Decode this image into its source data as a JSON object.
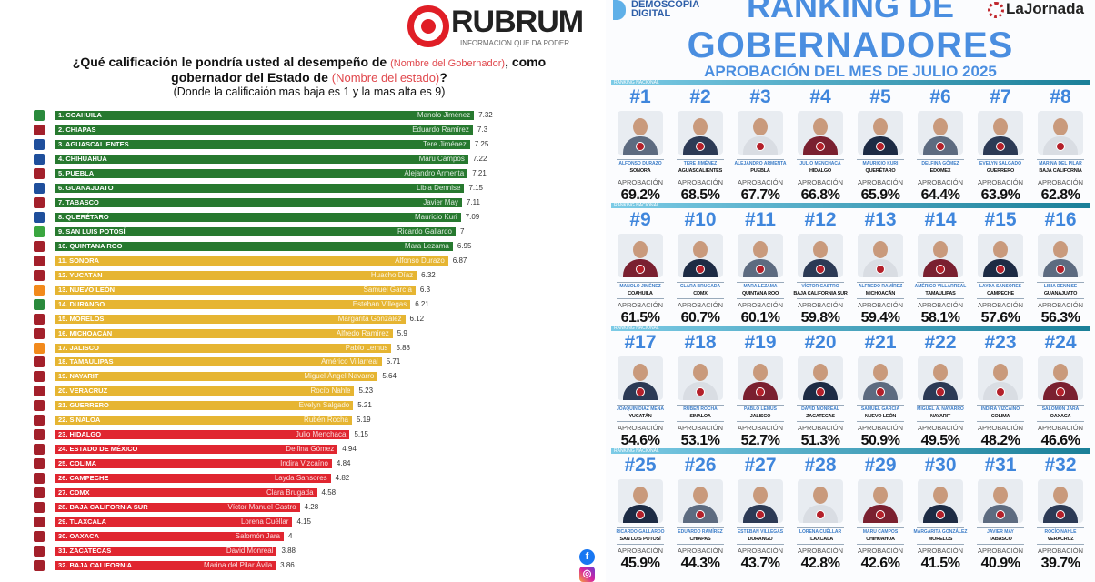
{
  "left": {
    "logo": {
      "text": "RUBRUM",
      "tagline": "INFORMACION QUE DA PODER"
    },
    "question": {
      "part1": "¿Qué calificación le pondría usted al desempeño de ",
      "ph_gobernador": "(Nombre del Gobernador)",
      "part2": ", como",
      "part3": "gobernador del Estado de ",
      "ph_estado": "(Nombre del estado)",
      "part4": "?",
      "note": "(Donde la calificaión mas baja es 1 y la mas alta es 9)"
    },
    "social": {
      "facebook": "facebook-icon",
      "instagram": "instagram-icon"
    }
  },
  "chart_data": {
    "type": "bar",
    "orientation": "horizontal",
    "xlim": [
      0,
      9
    ],
    "colors": {
      "green": "#27792f",
      "yellow": "#e6b532",
      "red": "#e02630"
    },
    "categories": [
      "1. COAHUILA",
      "2. CHIAPAS",
      "3. AGUASCALIENTES",
      "4. CHIHUAHUA",
      "5. PUEBLA",
      "6. GUANAJUATO",
      "7. TABASCO",
      "8. QUERÉTARO",
      "9. SAN LUIS POTOSÍ",
      "10. QUINTANA ROO",
      "11. SONORA",
      "12. YUCATÁN",
      "13. NUEVO LEÓN",
      "14. DURANGO",
      "15. MORELOS",
      "16. MICHOACÁN",
      "17. JALISCO",
      "18. TAMAULIPAS",
      "19. NAYARIT",
      "20. VERACRUZ",
      "21. GUERRERO",
      "22. SINALOA",
      "23. HIDALGO",
      "24. ESTADO DE MÉXICO",
      "25. COLIMA",
      "26. CAMPECHE",
      "27. CDMX",
      "28. BAJA CALIFORNIA SUR",
      "29. TLAXCALA",
      "30. OAXACA",
      "31. ZACATECAS",
      "32. BAJA CALIFORNIA"
    ],
    "governors": [
      "Manolo Jiménez",
      "Eduardo Ramírez",
      "Tere Jiménez",
      "Maru Campos",
      "Alejandro Armenta",
      "Libia Dennise",
      "Javier May",
      "Mauricio Kuri",
      "Ricardo Gallardo",
      "Mara Lezama",
      "Alfonso Durazo",
      "Huacho Díaz",
      "Samuel García",
      "Esteban Villegas",
      "Margarita González",
      "Alfredo Ramírez",
      "Pablo Lemus",
      "Américo Villarreal",
      "Miguel Ángel Navarro",
      "Rocío Nahle",
      "Evelyn Salgado",
      "Rubén Rocha",
      "Julio Menchaca",
      "Delfina Gómez",
      "Indira Vizcaíno",
      "Layda Sansores",
      "Clara Brugada",
      "Víctor Manuel Castro",
      "Lorena Cuéllar",
      "Salomón Jara",
      "David Monreal",
      "Marina del Pilar Ávila"
    ],
    "values": [
      7.32,
      7.3,
      7.25,
      7.22,
      7.21,
      7.15,
      7.11,
      7.09,
      7,
      6.95,
      6.87,
      6.32,
      6.3,
      6.21,
      6.12,
      5.9,
      5.88,
      5.71,
      5.64,
      5.23,
      5.21,
      5.19,
      5.15,
      4.94,
      4.84,
      4.82,
      4.58,
      4.28,
      4.15,
      4,
      3.88,
      3.86
    ],
    "value_labels": [
      "7.32",
      "7.3",
      "7.25",
      "7.22",
      "7.21",
      "7.15",
      "7.11",
      "7.09",
      "7",
      "6.95",
      "6.87",
      "6.32",
      "6.3",
      "6.21",
      "6.12",
      "5.9",
      "5.88",
      "5.71",
      "5.64",
      "5.23",
      "5.21",
      "5.19",
      "5.15",
      "4.94",
      "4.84",
      "4.82",
      "4.58",
      "4.28",
      "4.15",
      "4",
      "3.88",
      "3.86"
    ],
    "bar_color_group": [
      "green",
      "green",
      "green",
      "green",
      "green",
      "green",
      "green",
      "green",
      "green",
      "green",
      "yellow",
      "yellow",
      "yellow",
      "yellow",
      "yellow",
      "yellow",
      "yellow",
      "yellow",
      "yellow",
      "yellow",
      "yellow",
      "yellow",
      "red",
      "red",
      "red",
      "red",
      "red",
      "red",
      "red",
      "red",
      "red",
      "red"
    ],
    "party_colors": [
      "#2a8a3c",
      "#a3202b",
      "#1f4f9c",
      "#1f4f9c",
      "#a3202b",
      "#1f4f9c",
      "#a3202b",
      "#1f4f9c",
      "#3aa640",
      "#a3202b",
      "#a3202b",
      "#a3202b",
      "#f28a1c",
      "#2a8a3c",
      "#a3202b",
      "#a3202b",
      "#f28a1c",
      "#a3202b",
      "#a3202b",
      "#a3202b",
      "#a3202b",
      "#a3202b",
      "#a3202b",
      "#a3202b",
      "#a3202b",
      "#a3202b",
      "#a3202b",
      "#a3202b",
      "#a3202b",
      "#a3202b",
      "#a3202b",
      "#a3202b"
    ]
  },
  "right": {
    "brand_left": [
      "DEMOSCOPIA",
      "DIGITAL"
    ],
    "brand_right": "LaJornada",
    "title1": "RANKING DE",
    "title2": "GOBERNADORES",
    "subtitle": "APROBACIÓN DEL MES DE JULIO 2025",
    "group_label": "RANKING NACIONAL",
    "approval_label": "APROBACIÓN",
    "ranking": [
      {
        "rank": "#1",
        "name": "ALFONSO DURAZO",
        "state": "SONORA",
        "pct": "69.2%",
        "value": 69.2
      },
      {
        "rank": "#2",
        "name": "TERE JIMÉNEZ",
        "state": "AGUASCALIENTES",
        "pct": "68.5%",
        "value": 68.5
      },
      {
        "rank": "#3",
        "name": "ALEJANDRO ARMENTA",
        "state": "PUEBLA",
        "pct": "67.7%",
        "value": 67.7
      },
      {
        "rank": "#4",
        "name": "JULIO MENCHACA",
        "state": "HIDALGO",
        "pct": "66.8%",
        "value": 66.8
      },
      {
        "rank": "#5",
        "name": "MAURICIO KURI",
        "state": "QUERÉTARO",
        "pct": "65.9%",
        "value": 65.9
      },
      {
        "rank": "#6",
        "name": "DELFINA GÓMEZ",
        "state": "EDOMEX",
        "pct": "64.4%",
        "value": 64.4
      },
      {
        "rank": "#7",
        "name": "EVELYN SALGADO",
        "state": "GUERRERO",
        "pct": "63.9%",
        "value": 63.9
      },
      {
        "rank": "#8",
        "name": "MARINA DEL PILAR",
        "state": "BAJA CALIFORNIA",
        "pct": "62.8%",
        "value": 62.8
      },
      {
        "rank": "#9",
        "name": "MANOLO JIMÉNEZ",
        "state": "COAHUILA",
        "pct": "61.5%",
        "value": 61.5
      },
      {
        "rank": "#10",
        "name": "CLARA BRUGADA",
        "state": "CDMX",
        "pct": "60.7%",
        "value": 60.7
      },
      {
        "rank": "#11",
        "name": "MARA LEZAMA",
        "state": "QUINTANA ROO",
        "pct": "60.1%",
        "value": 60.1
      },
      {
        "rank": "#12",
        "name": "VÍCTOR CASTRO",
        "state": "BAJA CALIFORNIA SUR",
        "pct": "59.8%",
        "value": 59.8
      },
      {
        "rank": "#13",
        "name": "ALFREDO RAMÍREZ",
        "state": "MICHOACÁN",
        "pct": "59.4%",
        "value": 59.4
      },
      {
        "rank": "#14",
        "name": "AMÉRICO VILLARREAL",
        "state": "TAMAULIPAS",
        "pct": "58.1%",
        "value": 58.1
      },
      {
        "rank": "#15",
        "name": "LAYDA SANSORES",
        "state": "CAMPECHE",
        "pct": "57.6%",
        "value": 57.6
      },
      {
        "rank": "#16",
        "name": "LIBIA DENNISE",
        "state": "GUANAJUATO",
        "pct": "56.3%",
        "value": 56.3
      },
      {
        "rank": "#17",
        "name": "JOAQUÍN DÍAZ MENA",
        "state": "YUCATÁN",
        "pct": "54.6%",
        "value": 54.6
      },
      {
        "rank": "#18",
        "name": "RUBÉN ROCHA",
        "state": "SINALOA",
        "pct": "53.1%",
        "value": 53.1
      },
      {
        "rank": "#19",
        "name": "PABLO LEMUS",
        "state": "JALISCO",
        "pct": "52.7%",
        "value": 52.7
      },
      {
        "rank": "#20",
        "name": "DAVID MONREAL",
        "state": "ZACATECAS",
        "pct": "51.3%",
        "value": 51.3
      },
      {
        "rank": "#21",
        "name": "SAMUEL GARCÍA",
        "state": "NUEVO LEÓN",
        "pct": "50.9%",
        "value": 50.9
      },
      {
        "rank": "#22",
        "name": "MIGUEL Á. NAVARRO",
        "state": "NAYARIT",
        "pct": "49.5%",
        "value": 49.5
      },
      {
        "rank": "#23",
        "name": "INDIRA VIZCAÍNO",
        "state": "COLIMA",
        "pct": "48.2%",
        "value": 48.2
      },
      {
        "rank": "#24",
        "name": "SALOMÓN JARA",
        "state": "OAXACA",
        "pct": "46.6%",
        "value": 46.6
      },
      {
        "rank": "#25",
        "name": "RICARDO GALLARDO",
        "state": "SAN LUIS POTOSÍ",
        "pct": "45.9%",
        "value": 45.9
      },
      {
        "rank": "#26",
        "name": "EDUARDO RAMÍREZ",
        "state": "CHIAPAS",
        "pct": "44.3%",
        "value": 44.3
      },
      {
        "rank": "#27",
        "name": "ESTEBAN VILLEGAS",
        "state": "DURANGO",
        "pct": "43.7%",
        "value": 43.7
      },
      {
        "rank": "#28",
        "name": "LORENA CUÉLLAR",
        "state": "TLAXCALA",
        "pct": "42.8%",
        "value": 42.8
      },
      {
        "rank": "#29",
        "name": "MARU CAMPOS",
        "state": "CHIHUAHUA",
        "pct": "42.6%",
        "value": 42.6
      },
      {
        "rank": "#30",
        "name": "MARGARITA GONZÁLEZ",
        "state": "MORELOS",
        "pct": "41.5%",
        "value": 41.5
      },
      {
        "rank": "#31",
        "name": "JAVIER MAY",
        "state": "TABASCO",
        "pct": "40.9%",
        "value": 40.9
      },
      {
        "rank": "#32",
        "name": "ROCÍO NAHLE",
        "state": "VERACRUZ",
        "pct": "39.7%",
        "value": 39.7
      }
    ]
  }
}
